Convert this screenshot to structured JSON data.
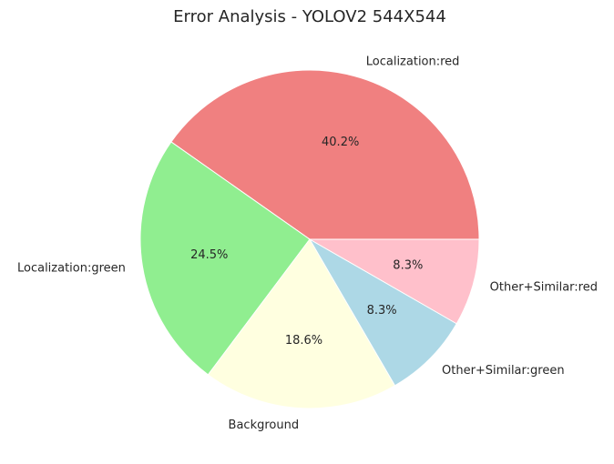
{
  "chart_data": {
    "type": "pie",
    "title": "Error Analysis - YOLOV2 544X544",
    "start_angle_deg": 0,
    "direction": "counterclockwise",
    "slices": [
      {
        "label": "Localization:red",
        "value": 40.2,
        "pct_text": "40.2%",
        "color": "#f08080"
      },
      {
        "label": "Localization:green",
        "value": 24.5,
        "pct_text": "24.5%",
        "color": "#90ee90"
      },
      {
        "label": "Background",
        "value": 18.6,
        "pct_text": "18.6%",
        "color": "#ffffe0"
      },
      {
        "label": "Other+Similar:green",
        "value": 8.3,
        "pct_text": "8.3%",
        "color": "#add8e6"
      },
      {
        "label": "Other+Similar:red",
        "value": 8.3,
        "pct_text": "8.3%",
        "color": "#ffc0cb"
      }
    ]
  }
}
